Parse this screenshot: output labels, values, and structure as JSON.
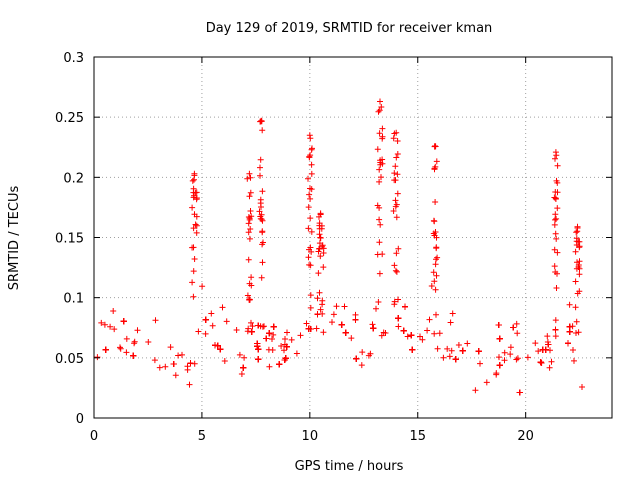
{
  "chart_data": {
    "type": "scatter",
    "title": "Day 129 of 2019, SRMTID for receiver kman",
    "xlabel": "GPS time / hours",
    "ylabel": "SRMTID / TECUs",
    "xlim": [
      0,
      24
    ],
    "ylim": [
      0,
      0.3
    ],
    "xticks": [
      0,
      5,
      10,
      15,
      20
    ],
    "xtick_labels": [
      "0",
      "5",
      "10",
      "15",
      "20"
    ],
    "yticks": [
      0,
      0.05,
      0.1,
      0.15,
      0.2,
      0.25,
      0.3
    ],
    "ytick_labels": [
      "0",
      "0.05",
      "0.1",
      "0.15",
      "0.2",
      "0.25",
      "0.3"
    ],
    "grid": true,
    "marker": "plus",
    "color": "#ff0000",
    "series": [
      {
        "name": "SRMTID",
        "baseline": [
          [
            0,
            0.05
          ],
          [
            0.5,
            0.065
          ],
          [
            1,
            0.07
          ],
          [
            1.5,
            0.065
          ],
          [
            2,
            0.062
          ],
          [
            2.5,
            0.05
          ],
          [
            3,
            0.043
          ],
          [
            3.5,
            0.04
          ],
          [
            4,
            0.04
          ],
          [
            4.3,
            0.045
          ],
          [
            4.6,
            0.07
          ],
          [
            5,
            0.08
          ],
          [
            5.5,
            0.075
          ],
          [
            6,
            0.07
          ],
          [
            6.5,
            0.065
          ],
          [
            7,
            0.06
          ],
          [
            7.5,
            0.07
          ],
          [
            8,
            0.068
          ],
          [
            8.5,
            0.058
          ],
          [
            9,
            0.058
          ],
          [
            9.5,
            0.065
          ],
          [
            10,
            0.08
          ],
          [
            10.5,
            0.085
          ],
          [
            11,
            0.08
          ],
          [
            11.5,
            0.07
          ],
          [
            12,
            0.065
          ],
          [
            12.5,
            0.055
          ],
          [
            13,
            0.065
          ],
          [
            13.5,
            0.08
          ],
          [
            14,
            0.085
          ],
          [
            14.5,
            0.075
          ],
          [
            15,
            0.065
          ],
          [
            15.5,
            0.065
          ],
          [
            16,
            0.062
          ],
          [
            16.5,
            0.065
          ],
          [
            17,
            0.06
          ],
          [
            17.5,
            0.052
          ],
          [
            18,
            0.045
          ],
          [
            18.5,
            0.045
          ],
          [
            19,
            0.05
          ],
          [
            19.5,
            0.058
          ],
          [
            20,
            0.06
          ],
          [
            20.5,
            0.055
          ],
          [
            21,
            0.05
          ],
          [
            21.3,
            0.055
          ],
          [
            21.6,
            0.065
          ],
          [
            22,
            0.06
          ],
          [
            22.5,
            0.055
          ],
          [
            22.8,
            0.05
          ]
        ],
        "spread": 0.022,
        "bursts": [
          {
            "x": 4.65,
            "width": 0.12,
            "peak": 0.203
          },
          {
            "x": 7.2,
            "width": 0.1,
            "peak": 0.203
          },
          {
            "x": 7.75,
            "width": 0.08,
            "peak": 0.247
          },
          {
            "x": 10.0,
            "width": 0.1,
            "peak": 0.235
          },
          {
            "x": 10.5,
            "width": 0.15,
            "peak": 0.17
          },
          {
            "x": 13.25,
            "width": 0.12,
            "peak": 0.263
          },
          {
            "x": 14.0,
            "width": 0.12,
            "peak": 0.237
          },
          {
            "x": 15.8,
            "width": 0.1,
            "peak": 0.226
          },
          {
            "x": 21.4,
            "width": 0.08,
            "peak": 0.221
          },
          {
            "x": 22.4,
            "width": 0.1,
            "peak": 0.159
          }
        ],
        "x_start": 0,
        "x_end": 22.9,
        "point_count": 1700
      }
    ]
  }
}
